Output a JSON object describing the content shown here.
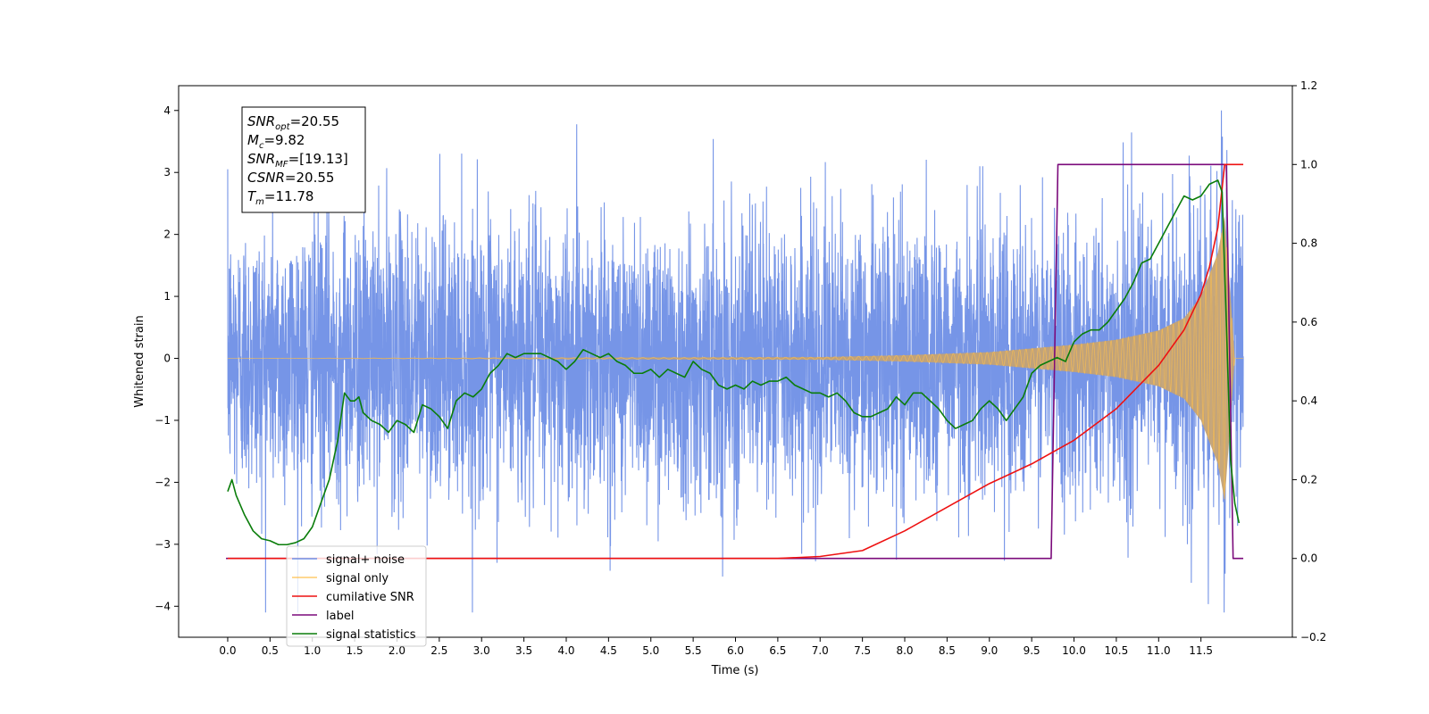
{
  "chart_data": {
    "type": "line",
    "xlabel": "Time (s)",
    "ylabel_left": "Whitened strain",
    "ylabel_right": "",
    "xlim": [
      -0.58,
      12.58
    ],
    "ylim_left": [
      -4.5,
      4.4
    ],
    "ylim_right": [
      -0.2,
      1.2
    ],
    "x_ticks": [
      0.0,
      0.5,
      1.0,
      1.5,
      2.0,
      2.5,
      3.0,
      3.5,
      4.0,
      4.5,
      5.0,
      5.5,
      6.0,
      6.5,
      7.0,
      7.5,
      8.0,
      8.5,
      9.0,
      9.5,
      10.0,
      10.5,
      11.0,
      11.5
    ],
    "x_tick_labels": [
      "0.0",
      "0.5",
      "1.0",
      "1.5",
      "2.0",
      "2.5",
      "3.0",
      "3.5",
      "4.0",
      "4.5",
      "5.0",
      "5.5",
      "6.0",
      "6.5",
      "7.0",
      "7.5",
      "8.0",
      "8.5",
      "9.0",
      "9.5",
      "10.0",
      "10.5",
      "11.0",
      "11.5"
    ],
    "y_ticks_left": [
      -4,
      -3,
      -2,
      -1,
      0,
      1,
      2,
      3,
      4
    ],
    "y_tick_labels_left": [
      "−4",
      "−3",
      "−2",
      "−1",
      "0",
      "1",
      "2",
      "3",
      "4"
    ],
    "y_ticks_right": [
      -0.2,
      0.0,
      0.2,
      0.4,
      0.6,
      0.8,
      1.0,
      1.2
    ],
    "y_tick_labels_right": [
      "−0.2",
      "0.0",
      "0.2",
      "0.4",
      "0.6",
      "0.8",
      "1.0",
      "1.2"
    ],
    "grid": false,
    "legend_position": "lower-left",
    "annotation": {
      "lines": [
        {
          "main": "SNR",
          "sub": "opt",
          "rest": "=20.55"
        },
        {
          "main": "M",
          "sub": "c",
          "rest": "=9.82"
        },
        {
          "main": "SNR",
          "sub": "MF",
          "rest": "=[19.13]"
        },
        {
          "main": "CSNR",
          "sub": "",
          "rest": "=20.55"
        },
        {
          "main": "T",
          "sub": "m",
          "rest": "=11.78"
        }
      ]
    },
    "series": [
      {
        "name": "signal+ noise",
        "axis": "left",
        "color": "#6f8fe6",
        "description": "whitened noise plus chirp signal, 0 to 12 s",
        "x_range": [
          0.0,
          12.0
        ],
        "noise_std": 1.1,
        "max_value": 4.0,
        "min_value": -4.1
      },
      {
        "name": "signal only",
        "axis": "left",
        "color": "#ffc04d",
        "description": "chirp signal amplitude envelope",
        "envelope_x": [
          0.0,
          7.0,
          8.0,
          9.0,
          10.0,
          10.5,
          11.0,
          11.3,
          11.5,
          11.7,
          11.78,
          11.85,
          11.9,
          12.0
        ],
        "envelope_y": [
          0.0,
          0.02,
          0.05,
          0.1,
          0.22,
          0.3,
          0.45,
          0.65,
          1.0,
          1.7,
          2.3,
          1.0,
          0.0,
          0.0
        ]
      },
      {
        "name": "cumilative SNR",
        "axis": "right",
        "color": "#ee1111",
        "x": [
          0.0,
          6.5,
          7.0,
          7.5,
          8.0,
          8.5,
          9.0,
          9.5,
          10.0,
          10.5,
          11.0,
          11.3,
          11.5,
          11.6,
          11.7,
          11.78,
          11.8,
          12.0
        ],
        "y": [
          0.0,
          0.0,
          0.005,
          0.02,
          0.07,
          0.13,
          0.19,
          0.24,
          0.3,
          0.38,
          0.49,
          0.58,
          0.67,
          0.74,
          0.84,
          1.0,
          1.0,
          1.0
        ]
      },
      {
        "name": "label",
        "axis": "right",
        "color": "#7b0a7b",
        "x": [
          -0.02,
          9.73,
          9.81,
          11.8,
          11.88,
          12.0
        ],
        "y": [
          0.0,
          0.0,
          1.0,
          1.0,
          0.0,
          0.0
        ]
      },
      {
        "name": "signal statistics",
        "axis": "right",
        "color": "#0a7d0a",
        "x": [
          0.0,
          0.05,
          0.1,
          0.2,
          0.3,
          0.4,
          0.5,
          0.6,
          0.7,
          0.8,
          0.9,
          1.0,
          1.1,
          1.2,
          1.3,
          1.38,
          1.45,
          1.5,
          1.55,
          1.6,
          1.7,
          1.8,
          1.9,
          2.0,
          2.1,
          2.2,
          2.3,
          2.4,
          2.5,
          2.6,
          2.7,
          2.8,
          2.9,
          3.0,
          3.1,
          3.2,
          3.3,
          3.4,
          3.5,
          3.6,
          3.7,
          3.8,
          3.9,
          4.0,
          4.1,
          4.2,
          4.3,
          4.4,
          4.5,
          4.6,
          4.7,
          4.8,
          4.9,
          5.0,
          5.1,
          5.2,
          5.3,
          5.4,
          5.5,
          5.6,
          5.7,
          5.8,
          5.9,
          6.0,
          6.1,
          6.2,
          6.3,
          6.4,
          6.5,
          6.6,
          6.7,
          6.8,
          6.9,
          7.0,
          7.1,
          7.2,
          7.3,
          7.4,
          7.5,
          7.6,
          7.7,
          7.8,
          7.9,
          8.0,
          8.1,
          8.2,
          8.3,
          8.4,
          8.5,
          8.6,
          8.7,
          8.8,
          8.9,
          9.0,
          9.1,
          9.2,
          9.3,
          9.4,
          9.5,
          9.6,
          9.7,
          9.8,
          9.9,
          10.0,
          10.1,
          10.2,
          10.3,
          10.4,
          10.5,
          10.6,
          10.7,
          10.8,
          10.9,
          11.0,
          11.1,
          11.2,
          11.3,
          11.4,
          11.5,
          11.6,
          11.7,
          11.75,
          11.8,
          11.85,
          11.9,
          11.95
        ],
        "y": [
          0.17,
          0.2,
          0.16,
          0.11,
          0.07,
          0.05,
          0.045,
          0.035,
          0.035,
          0.04,
          0.05,
          0.08,
          0.14,
          0.2,
          0.3,
          0.42,
          0.4,
          0.4,
          0.41,
          0.37,
          0.35,
          0.34,
          0.32,
          0.35,
          0.34,
          0.32,
          0.39,
          0.38,
          0.36,
          0.33,
          0.4,
          0.42,
          0.41,
          0.43,
          0.47,
          0.49,
          0.52,
          0.51,
          0.52,
          0.52,
          0.52,
          0.51,
          0.5,
          0.48,
          0.5,
          0.53,
          0.52,
          0.51,
          0.52,
          0.5,
          0.49,
          0.47,
          0.47,
          0.48,
          0.46,
          0.48,
          0.47,
          0.46,
          0.5,
          0.48,
          0.47,
          0.44,
          0.43,
          0.44,
          0.43,
          0.45,
          0.44,
          0.45,
          0.45,
          0.46,
          0.44,
          0.43,
          0.42,
          0.42,
          0.41,
          0.42,
          0.4,
          0.37,
          0.36,
          0.36,
          0.37,
          0.38,
          0.41,
          0.39,
          0.42,
          0.42,
          0.4,
          0.38,
          0.35,
          0.33,
          0.34,
          0.35,
          0.38,
          0.4,
          0.38,
          0.35,
          0.38,
          0.41,
          0.47,
          0.49,
          0.5,
          0.51,
          0.5,
          0.55,
          0.57,
          0.58,
          0.58,
          0.6,
          0.63,
          0.66,
          0.7,
          0.75,
          0.76,
          0.8,
          0.84,
          0.88,
          0.92,
          0.91,
          0.92,
          0.95,
          0.96,
          0.93,
          0.6,
          0.25,
          0.14,
          0.09
        ]
      }
    ]
  }
}
